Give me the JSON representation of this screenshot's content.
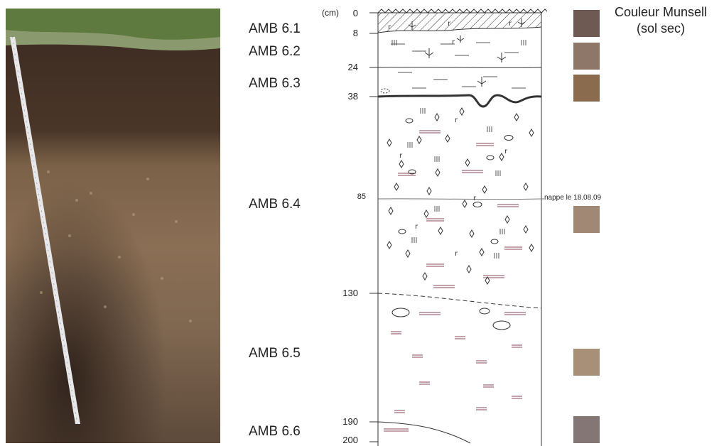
{
  "photo": {
    "description_icon": "soil-pit-photo-icon"
  },
  "horizons": [
    {
      "label": "AMB 6.1",
      "munsell_color": "#6e5a53"
    },
    {
      "label": "AMB 6.2",
      "munsell_color": "#8e7668"
    },
    {
      "label": "AMB 6.3",
      "munsell_color": "#8a6b4e"
    },
    {
      "label": "AMB 6.4",
      "munsell_color": "#a08874"
    },
    {
      "label": "AMB 6.5",
      "munsell_color": "#a89078"
    },
    {
      "label": "AMB 6.6",
      "munsell_color": "#857676"
    }
  ],
  "depth_axis": {
    "unit": "(cm)",
    "ticks": [
      "0",
      "8",
      "24",
      "38",
      "85",
      "130",
      "190",
      "200"
    ]
  },
  "nappe_label": "nappe le 18.08.09",
  "munsell": {
    "title_line1": "Couleur Munsell",
    "title_line2": "(sol sec)"
  }
}
